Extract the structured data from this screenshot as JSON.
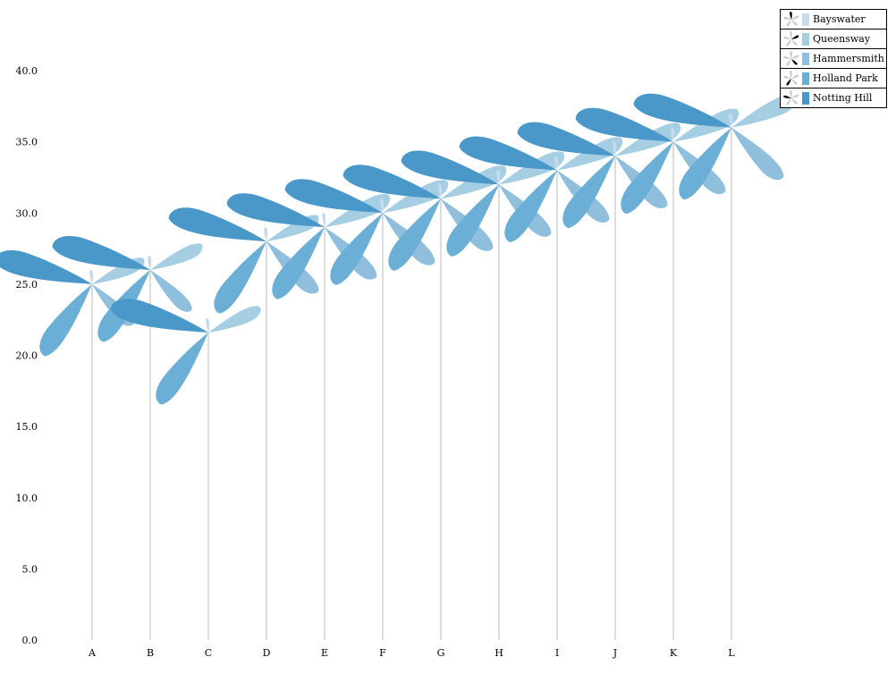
{
  "chart_data": {
    "type": "windmill",
    "title": "",
    "xlabel": "",
    "ylabel": "",
    "ylim": [
      0,
      40
    ],
    "yticks": [
      "0.0",
      "5.0",
      "10.0",
      "15.0",
      "20.0",
      "25.0",
      "30.0",
      "35.0",
      "40.0"
    ],
    "grid": false,
    "legend_position": "top-right",
    "categories": [
      "A",
      "B",
      "C",
      "D",
      "E",
      "F",
      "G",
      "H",
      "I",
      "J",
      "K",
      "L"
    ],
    "hub_values": [
      25.0,
      26.0,
      21.6,
      28.0,
      29.0,
      30.0,
      31.0,
      32.0,
      33.0,
      34.0,
      35.0,
      36.0
    ],
    "series": [
      {
        "name": "Bayswater",
        "color": "#c6dbef",
        "values": [
          1,
          1,
          1,
          1,
          1,
          1,
          1,
          1,
          1,
          1,
          1,
          1
        ]
      },
      {
        "name": "Queensway",
        "color": "#a6cee3",
        "values": [
          4,
          4,
          4,
          4,
          5,
          5,
          5,
          5,
          5,
          5,
          5,
          5
        ]
      },
      {
        "name": "Hammersmith",
        "color": "#8fbfdd",
        "values": [
          4,
          4,
          0,
          5,
          5,
          5,
          5,
          5,
          5,
          5,
          5,
          5
        ]
      },
      {
        "name": "Holland Park",
        "color": "#6baed6",
        "values": [
          6,
          6,
          6,
          6,
          6,
          6,
          6,
          6,
          6,
          6,
          6,
          6
        ]
      },
      {
        "name": "Notting Hill",
        "color": "#4a98c9",
        "values": [
          7,
          7,
          7,
          7,
          7,
          7,
          7,
          7,
          7,
          7,
          7,
          7
        ]
      }
    ]
  }
}
